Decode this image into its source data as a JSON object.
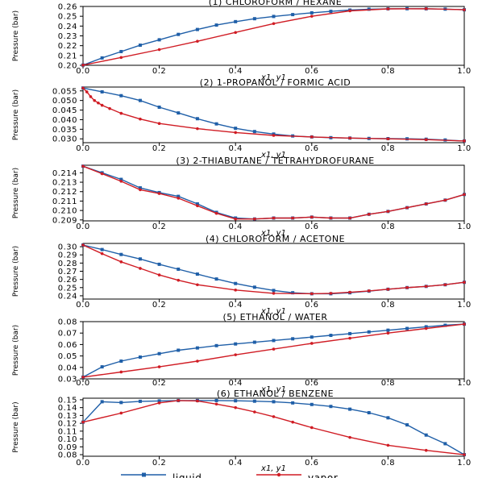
{
  "chart_data": {
    "type": "line",
    "x_ticks": [
      "0.0",
      "0.2",
      "0.4",
      "0.6",
      "0.8",
      "1.0"
    ],
    "xlabel": "x1, y1",
    "legend": {
      "position": "bottom-center",
      "entries": [
        {
          "name": "liquid",
          "color": "#1f5fa8"
        },
        {
          "name": "vapor",
          "color": "#d01c24"
        }
      ]
    },
    "panels": [
      {
        "title": "(1) CHLOROFORM / HEXANE",
        "ylabel": "Pressure (bar)",
        "ylim": [
          0.2,
          0.26
        ],
        "y_ticks": [
          "0.20",
          "0.21",
          "0.22",
          "0.23",
          "0.24",
          "0.25",
          "0.26"
        ],
        "series": [
          {
            "name": "liquid",
            "x": [
              0,
              0.05,
              0.1,
              0.15,
              0.2,
              0.25,
              0.3,
              0.35,
              0.4,
              0.45,
              0.5,
              0.55,
              0.6,
              0.65,
              0.7,
              0.75,
              0.8,
              0.85,
              0.9,
              0.95,
              1.0
            ],
            "y": [
              0.2002,
              0.2075,
              0.214,
              0.2205,
              0.226,
              0.2315,
              0.2365,
              0.241,
              0.2445,
              0.2475,
              0.2498,
              0.2517,
              0.2535,
              0.255,
              0.2563,
              0.2572,
              0.2576,
              0.2577,
              0.2576,
              0.2573,
              0.2566
            ]
          },
          {
            "name": "vapor",
            "x": [
              0,
              0.1,
              0.2,
              0.3,
              0.4,
              0.5,
              0.6,
              0.7,
              0.8,
              0.9,
              1.0
            ],
            "y": [
              0.2002,
              0.208,
              0.216,
              0.2245,
              0.2335,
              0.2425,
              0.25,
              0.2555,
              0.2575,
              0.2577,
              0.2566
            ]
          }
        ]
      },
      {
        "title": "(2) 1-PROPANOL / FORMIC ACID",
        "ylabel": "Pressure (bar)",
        "ylim": [
          0.028,
          0.057
        ],
        "y_ticks": [
          "0.030",
          "0.035",
          "0.040",
          "0.045",
          "0.050",
          "0.055"
        ],
        "series": [
          {
            "name": "liquid",
            "x": [
              0,
              0.05,
              0.1,
              0.15,
              0.2,
              0.25,
              0.3,
              0.35,
              0.4,
              0.45,
              0.5,
              0.55,
              0.6,
              0.65,
              0.7,
              0.75,
              0.8,
              0.85,
              0.9,
              0.95,
              1.0
            ],
            "y": [
              0.0565,
              0.0545,
              0.0525,
              0.05,
              0.0465,
              0.0435,
              0.0405,
              0.0378,
              0.0355,
              0.0338,
              0.0325,
              0.0315,
              0.031,
              0.0306,
              0.0304,
              0.0302,
              0.0301,
              0.03,
              0.0298,
              0.0294,
              0.0289
            ]
          },
          {
            "name": "vapor",
            "x": [
              0,
              0.01,
              0.02,
              0.03,
              0.04,
              0.05,
              0.07,
              0.1,
              0.15,
              0.2,
              0.3,
              0.4,
              0.5,
              0.6,
              0.7,
              0.8,
              0.9,
              1.0
            ],
            "y": [
              0.0565,
              0.0545,
              0.052,
              0.05,
              0.0487,
              0.0475,
              0.0458,
              0.0433,
              0.0403,
              0.038,
              0.0353,
              0.0333,
              0.0318,
              0.031,
              0.0304,
              0.03,
              0.0296,
              0.0289
            ]
          }
        ]
      },
      {
        "title": "(3) 2-THIABUTANE / TETRAHYDROFURANE",
        "ylabel": "Pressure (bar)",
        "ylim": [
          0.2089,
          0.2148
        ],
        "y_ticks": [
          "0.209",
          "0.210",
          "0.211",
          "0.212",
          "0.213",
          "0.214"
        ],
        "series": [
          {
            "name": "liquid",
            "x": [
              0,
              0.05,
              0.1,
              0.15,
              0.2,
              0.25,
              0.3,
              0.35,
              0.4,
              0.45,
              0.5,
              0.55,
              0.6,
              0.65,
              0.7,
              0.75,
              0.8,
              0.85,
              0.9,
              0.95,
              1.0
            ],
            "y": [
              0.2147,
              0.214,
              0.2133,
              0.2124,
              0.2119,
              0.2115,
              0.2107,
              0.2098,
              0.2092,
              0.2091,
              0.2092,
              0.2092,
              0.2093,
              0.2092,
              0.2092,
              0.2096,
              0.2099,
              0.2103,
              0.2107,
              0.2111,
              0.2117
            ]
          },
          {
            "name": "vapor",
            "x": [
              0,
              0.05,
              0.1,
              0.15,
              0.2,
              0.25,
              0.3,
              0.35,
              0.4,
              0.45,
              0.5,
              0.55,
              0.6,
              0.65,
              0.7,
              0.75,
              0.8,
              0.85,
              0.9,
              0.95,
              1.0
            ],
            "y": [
              0.2147,
              0.2139,
              0.2131,
              0.2122,
              0.2118,
              0.2113,
              0.2105,
              0.2097,
              0.2091,
              0.2091,
              0.2092,
              0.2092,
              0.2093,
              0.2092,
              0.2092,
              0.2096,
              0.2099,
              0.2103,
              0.2107,
              0.2111,
              0.2117
            ]
          }
        ]
      },
      {
        "title": "(4) CHLOROFORM / ACETONE",
        "ylabel": "Pressure (bar)",
        "ylim": [
          0.236,
          0.304
        ],
        "y_ticks": [
          "0.24",
          "0.25",
          "0.26",
          "0.27",
          "0.28",
          "0.29",
          "0.30"
        ],
        "series": [
          {
            "name": "liquid",
            "x": [
              0,
              0.05,
              0.1,
              0.15,
              0.2,
              0.25,
              0.3,
              0.35,
              0.4,
              0.45,
              0.5,
              0.55,
              0.6,
              0.65,
              0.7,
              0.75,
              0.8,
              0.85,
              0.9,
              0.95,
              1.0
            ],
            "y": [
              0.302,
              0.2965,
              0.2905,
              0.285,
              0.2785,
              0.2725,
              0.2665,
              0.2605,
              0.255,
              0.2505,
              0.2465,
              0.2437,
              0.2425,
              0.2425,
              0.2437,
              0.2457,
              0.248,
              0.25,
              0.2515,
              0.2535,
              0.2565
            ]
          },
          {
            "name": "vapor",
            "x": [
              0,
              0.05,
              0.1,
              0.15,
              0.2,
              0.25,
              0.3,
              0.4,
              0.5,
              0.6,
              0.65,
              0.7,
              0.75,
              0.8,
              0.85,
              0.9,
              0.95,
              1.0
            ],
            "y": [
              0.302,
              0.2915,
              0.2815,
              0.2735,
              0.2655,
              0.259,
              0.2535,
              0.247,
              0.243,
              0.2425,
              0.243,
              0.2443,
              0.246,
              0.248,
              0.25,
              0.2515,
              0.2535,
              0.2565
            ]
          }
        ]
      },
      {
        "title": "(5) ETHANOL / WATER",
        "ylabel": "Pressure (bar)",
        "ylim": [
          0.03,
          0.08
        ],
        "y_ticks": [
          "0.03",
          "0.04",
          "0.05",
          "0.06",
          "0.07",
          "0.08"
        ],
        "series": [
          {
            "name": "liquid",
            "x": [
              0,
              0.05,
              0.1,
              0.15,
              0.2,
              0.25,
              0.3,
              0.35,
              0.4,
              0.45,
              0.5,
              0.55,
              0.6,
              0.65,
              0.7,
              0.75,
              0.8,
              0.85,
              0.9,
              0.95,
              1.0
            ],
            "y": [
              0.0315,
              0.0405,
              0.0455,
              0.049,
              0.052,
              0.055,
              0.057,
              0.059,
              0.0605,
              0.062,
              0.0635,
              0.065,
              0.0665,
              0.068,
              0.0695,
              0.071,
              0.0725,
              0.074,
              0.0755,
              0.0768,
              0.0778
            ]
          },
          {
            "name": "vapor",
            "x": [
              0,
              0.1,
              0.2,
              0.3,
              0.4,
              0.5,
              0.6,
              0.7,
              0.8,
              0.9,
              1.0
            ],
            "y": [
              0.0315,
              0.036,
              0.0405,
              0.0455,
              0.051,
              0.056,
              0.061,
              0.0655,
              0.07,
              0.074,
              0.0778
            ]
          }
        ]
      },
      {
        "title": "(6) ETHANOL / BENZENE",
        "ylabel": "Pressure (bar)",
        "ylim": [
          0.078,
          0.152
        ],
        "y_ticks": [
          "0.08",
          "0.09",
          "0.10",
          "0.11",
          "0.12",
          "0.13",
          "0.14",
          "0.15"
        ],
        "series": [
          {
            "name": "liquid",
            "x": [
              0,
              0.05,
              0.1,
              0.15,
              0.2,
              0.25,
              0.3,
              0.35,
              0.4,
              0.45,
              0.5,
              0.55,
              0.6,
              0.65,
              0.7,
              0.75,
              0.8,
              0.85,
              0.9,
              0.95,
              1.0
            ],
            "y": [
              0.1215,
              0.1475,
              0.1465,
              0.148,
              0.1485,
              0.149,
              0.149,
              0.149,
              0.1487,
              0.1482,
              0.1475,
              0.146,
              0.144,
              0.1415,
              0.138,
              0.1335,
              0.127,
              0.118,
              0.105,
              0.094,
              0.08
            ]
          },
          {
            "name": "vapor",
            "x": [
              0,
              0.1,
              0.2,
              0.25,
              0.3,
              0.35,
              0.4,
              0.45,
              0.5,
              0.55,
              0.6,
              0.7,
              0.8,
              0.9,
              1.0
            ],
            "y": [
              0.1215,
              0.133,
              0.146,
              0.149,
              0.1485,
              0.1445,
              0.14,
              0.1345,
              0.1285,
              0.1215,
              0.1145,
              0.102,
              0.092,
              0.0855,
              0.08
            ]
          }
        ]
      }
    ]
  }
}
